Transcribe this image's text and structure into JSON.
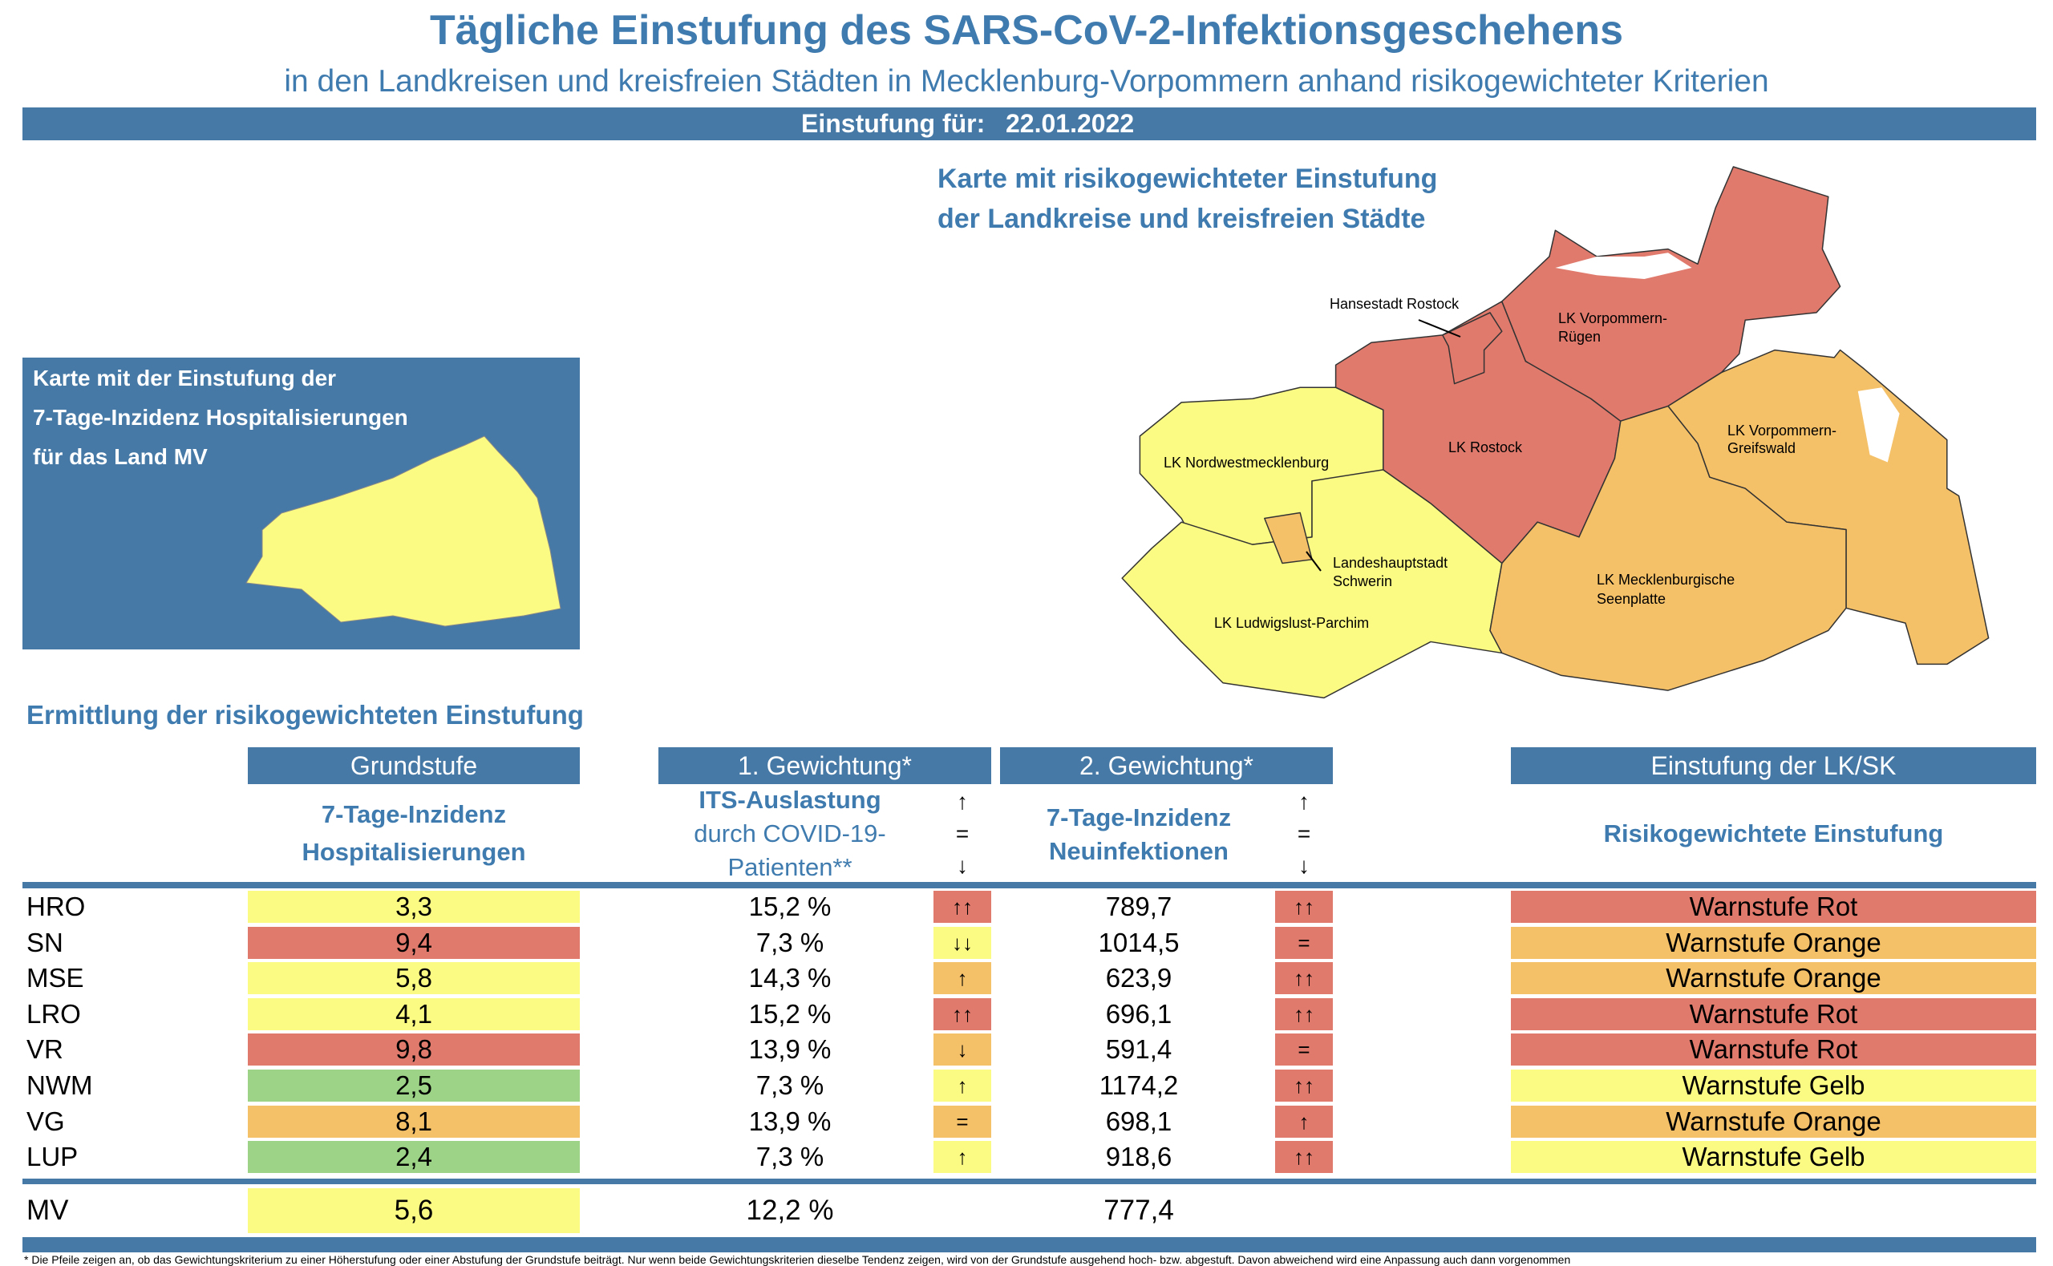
{
  "header": {
    "title": "Tägliche Einstufung des SARS-CoV-2-Infektionsgeschehens",
    "subtitle": "in den Landkreisen und kreisfreien Städten in Mecklenburg-Vorpommern anhand risikogewichteter Kriterien",
    "date_label": "Einstufung für:",
    "date": "22.01.2022"
  },
  "map": {
    "title_line1": "Karte mit risikogewichteter Einstufung",
    "title_line2": "der Landkreise und kreisfreien Städte",
    "labels": {
      "hro": "Hansestadt Rostock",
      "vr1": "LK Vorpommern-",
      "vr2": "Rügen",
      "lro": "LK Rostock",
      "vg1": "LK Vorpommern-",
      "vg2": "Greifswald",
      "nwm": "LK Nordwestmecklenburg",
      "sn1": "Landeshauptstadt",
      "sn2": "Schwerin",
      "lup": "LK Ludwigslust-Parchim",
      "mse1": "LK Mecklenburgische",
      "mse2": "Seenplatte"
    },
    "colors": {
      "red": "#e07a6d",
      "orange": "#f4c068",
      "yellow": "#fbfa83",
      "green": "#9dd387"
    }
  },
  "hosp_box": {
    "line1": "Karte mit der Einstufung der",
    "line2": "7-Tage-Inzidenz Hospitalisierungen",
    "line3": "für das Land MV"
  },
  "table": {
    "section_title": "Ermittlung der risikogewichteten Einstufung",
    "headers": {
      "grundstufe": "Grundstufe",
      "gew1": "1. Gewichtung*",
      "gew2": "2. Gewichtung*",
      "einstufung": "Einstufung der LK/SK"
    },
    "subheaders": {
      "grund1": "7-Tage-Inzidenz",
      "grund2": "Hospitalisierungen",
      "its1": "ITS-Auslastung",
      "its2": "durch COVID-19-",
      "its3": "Patienten**",
      "inc1": "7-Tage-Inzidenz",
      "inc2": "Neuinfektionen",
      "einst": "Risikogewichtete Einstufung",
      "arrow_up": "↑",
      "arrow_eq": "=",
      "arrow_down": "↓"
    },
    "rows": [
      {
        "kreis": "HRO",
        "hosp": "3,3",
        "hosp_color": "yellow",
        "its": "15,2 %",
        "its_trend": "↑↑",
        "its_color": "red",
        "inz": "789,7",
        "inz_trend": "↑↑",
        "inz_color": "red",
        "stufe": "Warnstufe Rot",
        "stufe_color": "red"
      },
      {
        "kreis": "SN",
        "hosp": "9,4",
        "hosp_color": "red",
        "its": "7,3 %",
        "its_trend": "↓↓",
        "its_color": "yellow",
        "inz": "1014,5",
        "inz_trend": "=",
        "inz_color": "red",
        "stufe": "Warnstufe Orange",
        "stufe_color": "orange"
      },
      {
        "kreis": "MSE",
        "hosp": "5,8",
        "hosp_color": "yellow",
        "its": "14,3 %",
        "its_trend": "↑",
        "its_color": "orange",
        "inz": "623,9",
        "inz_trend": "↑↑",
        "inz_color": "red",
        "stufe": "Warnstufe Orange",
        "stufe_color": "orange"
      },
      {
        "kreis": "LRO",
        "hosp": "4,1",
        "hosp_color": "yellow",
        "its": "15,2 %",
        "its_trend": "↑↑",
        "its_color": "red",
        "inz": "696,1",
        "inz_trend": "↑↑",
        "inz_color": "red",
        "stufe": "Warnstufe Rot",
        "stufe_color": "red"
      },
      {
        "kreis": "VR",
        "hosp": "9,8",
        "hosp_color": "red",
        "its": "13,9 %",
        "its_trend": "↓",
        "its_color": "orange",
        "inz": "591,4",
        "inz_trend": "=",
        "inz_color": "red",
        "stufe": "Warnstufe Rot",
        "stufe_color": "red"
      },
      {
        "kreis": "NWM",
        "hosp": "2,5",
        "hosp_color": "green",
        "its": "7,3 %",
        "its_trend": "↑",
        "its_color": "yellow",
        "inz": "1174,2",
        "inz_trend": "↑↑",
        "inz_color": "red",
        "stufe": "Warnstufe Gelb",
        "stufe_color": "yellow"
      },
      {
        "kreis": "VG",
        "hosp": "8,1",
        "hosp_color": "orange",
        "its": "13,9 %",
        "its_trend": "=",
        "its_color": "orange",
        "inz": "698,1",
        "inz_trend": "↑",
        "inz_color": "red",
        "stufe": "Warnstufe Orange",
        "stufe_color": "orange"
      },
      {
        "kreis": "LUP",
        "hosp": "2,4",
        "hosp_color": "green",
        "its": "7,3 %",
        "its_trend": "↑",
        "its_color": "yellow",
        "inz": "918,6",
        "inz_trend": "↑↑",
        "inz_color": "red",
        "stufe": "Warnstufe Gelb",
        "stufe_color": "yellow"
      }
    ],
    "total": {
      "kreis": "MV",
      "hosp": "5,6",
      "hosp_color": "yellow",
      "its": "12,2 %",
      "inz": "777,4"
    }
  },
  "footnote": "* Die Pfeile zeigen an, ob das Gewichtungskriterium zu einer Höherstufung oder einer Abstufung der Grundstufe beiträgt. Nur wenn beide Gewichtungskriterien dieselbe Tendenz zeigen, wird von der Grundstufe ausgehend hoch- bzw. abgestuft. Davon abweichend wird eine Anpassung auch dann vorgenommen"
}
